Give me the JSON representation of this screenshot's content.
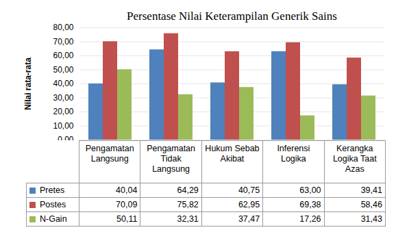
{
  "chart_data": {
    "type": "bar",
    "title": "Persentase Nilai Keterampilan Generik Sains",
    "ylabel": "Nilai rata-rata",
    "categories": [
      "Pengamatan Langsung",
      "Pengamatan Tidak Langsung",
      "Hukum Sebab Akibat",
      "Inferensi Logika",
      "Kerangka Logika Taat Azas"
    ],
    "series": [
      {
        "name": "Pretes",
        "color": "#4F81BD",
        "values": [
          40.04,
          64.29,
          40.75,
          63.0,
          39.41
        ],
        "value_labels": [
          "40,04",
          "64,29",
          "40,75",
          "63,00",
          "39,41"
        ]
      },
      {
        "name": "Postes",
        "color": "#C0504D",
        "values": [
          70.09,
          75.82,
          62.95,
          69.38,
          58.46
        ],
        "value_labels": [
          "70,09",
          "75,82",
          "62,95",
          "69,38",
          "58,46"
        ]
      },
      {
        "name": "N-Gain",
        "color": "#9BBB59",
        "values": [
          50.11,
          32.31,
          37.47,
          17.26,
          31.43
        ],
        "value_labels": [
          "50,11",
          "32,31",
          "37,47",
          "17,26",
          "31,43"
        ]
      }
    ],
    "ylim": [
      0,
      80
    ],
    "yticks": [
      {
        "value": 0,
        "label": "0,00"
      },
      {
        "value": 10,
        "label": "10,00"
      },
      {
        "value": 20,
        "label": "20,00"
      },
      {
        "value": 30,
        "label": "30,00"
      },
      {
        "value": 40,
        "label": "40,00"
      },
      {
        "value": 50,
        "label": "50,00"
      },
      {
        "value": 60,
        "label": "60,00"
      },
      {
        "value": 70,
        "label": "70,00"
      },
      {
        "value": 80,
        "label": "80,00"
      }
    ],
    "grid": true,
    "tick_labels": "y"
  }
}
